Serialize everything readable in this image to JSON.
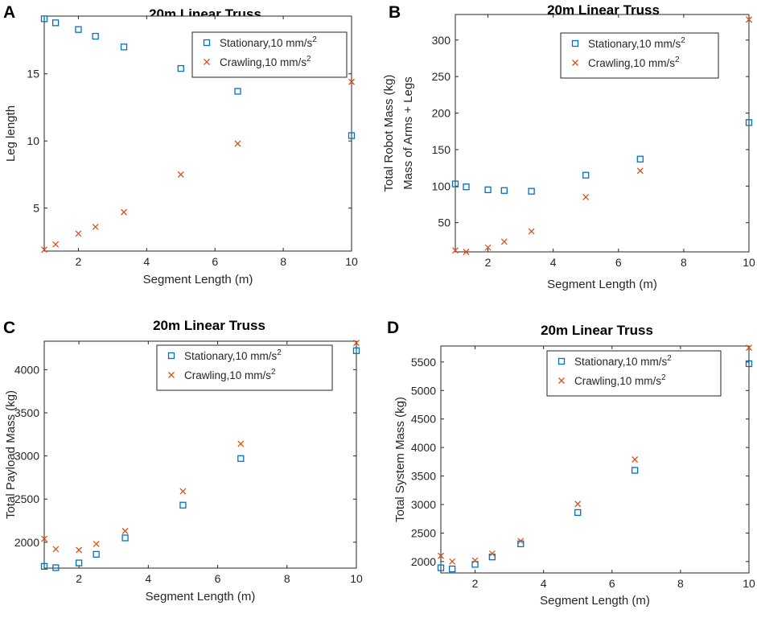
{
  "colors": {
    "stationary": "#0072BD",
    "crawling": "#D95319",
    "axis": "#262626"
  },
  "charts": [
    {
      "panel_label": "A",
      "title": "20m Linear Truss",
      "xlabel": "Segment Length (m)",
      "ylabel_lines": [
        "Leg length"
      ],
      "xlim": [
        1,
        10
      ],
      "ylim": [
        1.8,
        19.3
      ],
      "xticks": [
        2,
        4,
        6,
        8,
        10
      ],
      "xtick_labels": [
        "2",
        "4",
        "6",
        "8",
        "10"
      ],
      "yticks": [
        5,
        10,
        15
      ],
      "ytick_labels": [
        "5",
        "10",
        "15"
      ],
      "legend_pos": "top-right",
      "legend": [
        {
          "name": "Stationary,10 mm/s",
          "sup": "2"
        },
        {
          "name": "Crawling,10 mm/s",
          "sup": "2"
        }
      ],
      "series": [
        {
          "name": "Stationary",
          "marker": "square",
          "x": [
            1,
            1.333,
            2,
            2.5,
            3.333,
            5,
            6.667,
            10
          ],
          "y": [
            19.1,
            18.8,
            18.3,
            17.8,
            17.0,
            15.4,
            13.7,
            10.4
          ]
        },
        {
          "name": "Crawling",
          "marker": "x",
          "x": [
            1,
            1.333,
            2,
            2.5,
            3.333,
            5,
            6.667,
            10
          ],
          "y": [
            1.9,
            2.3,
            3.1,
            3.6,
            4.7,
            7.5,
            9.8,
            14.4
          ]
        }
      ]
    },
    {
      "panel_label": "B",
      "title": "20m Linear Truss",
      "xlabel": "Segment Length (m)",
      "ylabel_lines": [
        "Total Robot Mass (kg)",
        "Mass of Arms + Legs"
      ],
      "xlim": [
        1,
        10
      ],
      "ylim": [
        10,
        335
      ],
      "xticks": [
        2,
        4,
        6,
        8,
        10
      ],
      "xtick_labels": [
        "2",
        "4",
        "6",
        "8",
        "10"
      ],
      "yticks": [
        50,
        100,
        150,
        200,
        250,
        300
      ],
      "ytick_labels": [
        "50",
        "100",
        "150",
        "200",
        "250",
        "300"
      ],
      "legend_pos": "top-right",
      "legend": [
        {
          "name": "Stationary,10 mm/s",
          "sup": "2"
        },
        {
          "name": "Crawling,10 mm/s",
          "sup": "2"
        }
      ],
      "series": [
        {
          "name": "Stationary",
          "marker": "square",
          "x": [
            1,
            1.333,
            2,
            2.5,
            3.333,
            5,
            6.667,
            10
          ],
          "y": [
            103,
            99,
            95,
            94,
            93,
            115,
            137,
            187
          ]
        },
        {
          "name": "Crawling",
          "marker": "x",
          "x": [
            1,
            1.333,
            2,
            2.5,
            3.333,
            5,
            6.667,
            10
          ],
          "y": [
            12,
            10,
            16,
            24,
            38,
            85,
            121,
            328
          ]
        }
      ]
    },
    {
      "panel_label": "C",
      "title": "20m Linear Truss",
      "xlabel": "Segment Length (m)",
      "ylabel_lines": [
        "Total Payload Mass (kg)"
      ],
      "xlim": [
        1,
        10
      ],
      "ylim": [
        1700,
        4330
      ],
      "xticks": [
        2,
        4,
        6,
        8,
        10
      ],
      "xtick_labels": [
        "2",
        "4",
        "6",
        "8",
        "10"
      ],
      "yticks": [
        2000,
        2500,
        3000,
        3500,
        4000
      ],
      "ytick_labels": [
        "2000",
        "2500",
        "3000",
        "3500",
        "4000"
      ],
      "legend_pos": "top-right",
      "legend": [
        {
          "name": "Stationary,10 mm/s",
          "sup": "2"
        },
        {
          "name": "Crawling,10 mm/s",
          "sup": "2"
        }
      ],
      "series": [
        {
          "name": "Stationary",
          "marker": "square",
          "x": [
            1,
            1.333,
            2,
            2.5,
            3.333,
            5,
            6.667,
            10
          ],
          "y": [
            1720,
            1705,
            1760,
            1860,
            2050,
            2430,
            2970,
            4220
          ]
        },
        {
          "name": "Crawling",
          "marker": "x",
          "x": [
            1,
            1.333,
            2,
            2.5,
            3.333,
            5,
            6.667,
            10
          ],
          "y": [
            2040,
            1920,
            1910,
            1980,
            2130,
            2590,
            3140,
            4310
          ]
        }
      ]
    },
    {
      "panel_label": "D",
      "title": "20m Linear Truss",
      "xlabel": "Segment Length (m)",
      "ylabel_lines": [
        "Total System Mass (kg)"
      ],
      "xlim": [
        1,
        10
      ],
      "ylim": [
        1800,
        5780
      ],
      "xticks": [
        2,
        4,
        6,
        8,
        10
      ],
      "xtick_labels": [
        "2",
        "4",
        "6",
        "8",
        "10"
      ],
      "yticks": [
        2000,
        2500,
        3000,
        3500,
        4000,
        4500,
        5000,
        5500
      ],
      "ytick_labels": [
        "2000",
        "2500",
        "3000",
        "3500",
        "4000",
        "4500",
        "5000",
        "5500"
      ],
      "legend_pos": "top-right",
      "legend": [
        {
          "name": "Stationary,10 mm/s",
          "sup": "2"
        },
        {
          "name": "Crawling,10 mm/s",
          "sup": "2"
        }
      ],
      "series": [
        {
          "name": "Stationary",
          "marker": "square",
          "x": [
            1,
            1.333,
            2,
            2.5,
            3.333,
            5,
            6.667,
            10
          ],
          "y": [
            1890,
            1870,
            1950,
            2080,
            2310,
            2860,
            3600,
            5470
          ]
        },
        {
          "name": "Crawling",
          "marker": "x",
          "x": [
            1,
            1.333,
            2,
            2.5,
            3.333,
            5,
            6.667,
            10
          ],
          "y": [
            2100,
            2000,
            2020,
            2140,
            2360,
            3010,
            3790,
            5750
          ]
        }
      ]
    }
  ],
  "chart_data": [
    {
      "type": "scatter",
      "title": "20m Linear Truss",
      "xlabel": "Segment Length (m)",
      "ylabel": "Leg length",
      "xlim": [
        1,
        10
      ],
      "ylim": [
        1.8,
        19.3
      ],
      "series": [
        {
          "name": "Stationary,10 mm/s2",
          "x": [
            1,
            1.333,
            2,
            2.5,
            3.333,
            5,
            6.667,
            10
          ],
          "y": [
            19.1,
            18.8,
            18.3,
            17.8,
            17.0,
            15.4,
            13.7,
            10.4
          ]
        },
        {
          "name": "Crawling,10 mm/s2",
          "x": [
            1,
            1.333,
            2,
            2.5,
            3.333,
            5,
            6.667,
            10
          ],
          "y": [
            1.9,
            2.3,
            3.1,
            3.6,
            4.7,
            7.5,
            9.8,
            14.4
          ]
        }
      ]
    },
    {
      "type": "scatter",
      "title": "20m Linear Truss",
      "xlabel": "Segment Length (m)",
      "ylabel": "Total Robot Mass (kg) Mass of Arms + Legs",
      "xlim": [
        1,
        10
      ],
      "ylim": [
        10,
        335
      ],
      "series": [
        {
          "name": "Stationary,10 mm/s2",
          "x": [
            1,
            1.333,
            2,
            2.5,
            3.333,
            5,
            6.667,
            10
          ],
          "y": [
            103,
            99,
            95,
            94,
            93,
            115,
            137,
            187
          ]
        },
        {
          "name": "Crawling,10 mm/s2",
          "x": [
            1,
            1.333,
            2,
            2.5,
            3.333,
            5,
            6.667,
            10
          ],
          "y": [
            12,
            10,
            16,
            24,
            38,
            85,
            121,
            328
          ]
        }
      ]
    },
    {
      "type": "scatter",
      "title": "20m Linear Truss",
      "xlabel": "Segment Length (m)",
      "ylabel": "Total Payload Mass (kg)",
      "xlim": [
        1,
        10
      ],
      "ylim": [
        1700,
        4330
      ],
      "series": [
        {
          "name": "Stationary,10 mm/s2",
          "x": [
            1,
            1.333,
            2,
            2.5,
            3.333,
            5,
            6.667,
            10
          ],
          "y": [
            1720,
            1705,
            1760,
            1860,
            2050,
            2430,
            2970,
            4220
          ]
        },
        {
          "name": "Crawling,10 mm/s2",
          "x": [
            1,
            1.333,
            2,
            2.5,
            3.333,
            5,
            6.667,
            10
          ],
          "y": [
            2040,
            1920,
            1910,
            1980,
            2130,
            2590,
            3140,
            4310
          ]
        }
      ]
    },
    {
      "type": "scatter",
      "title": "20m Linear Truss",
      "xlabel": "Segment Length (m)",
      "ylabel": "Total System Mass (kg)",
      "xlim": [
        1,
        10
      ],
      "ylim": [
        1800,
        5780
      ],
      "series": [
        {
          "name": "Stationary,10 mm/s2",
          "x": [
            1,
            1.333,
            2,
            2.5,
            3.333,
            5,
            6.667,
            10
          ],
          "y": [
            1890,
            1870,
            1950,
            2080,
            2310,
            2860,
            3600,
            5470
          ]
        },
        {
          "name": "Crawling,10 mm/s2",
          "x": [
            1,
            1.333,
            2,
            2.5,
            3.333,
            5,
            6.667,
            10
          ],
          "y": [
            2100,
            2000,
            2020,
            2140,
            2360,
            3010,
            3790,
            5750
          ]
        }
      ]
    }
  ]
}
